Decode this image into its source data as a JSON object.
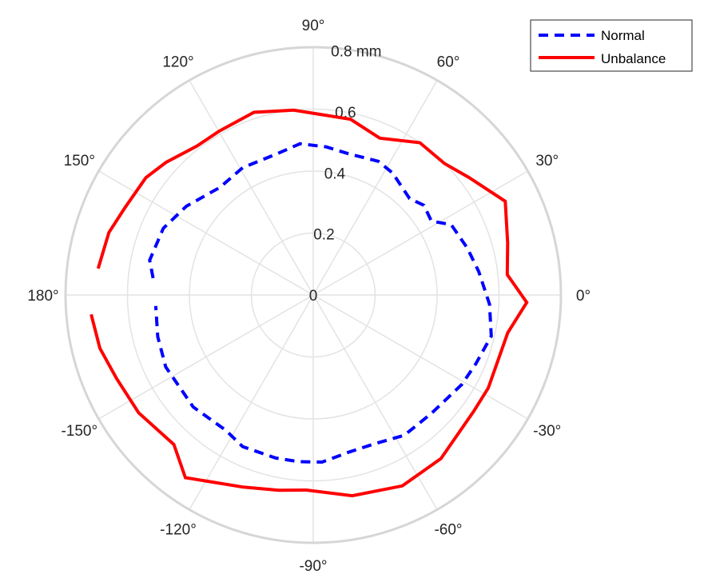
{
  "chart_data": {
    "type": "polar-line",
    "r_unit": "mm",
    "rlim": [
      0,
      0.8
    ],
    "r_ticks": [
      {
        "value": 0,
        "label": "0"
      },
      {
        "value": 0.2,
        "label": "0.2"
      },
      {
        "value": 0.4,
        "label": "0.4"
      },
      {
        "value": 0.6,
        "label": "0.6"
      },
      {
        "value": 0.8,
        "label": "0.8 mm"
      }
    ],
    "theta_ticks": [
      {
        "angle": 0,
        "label": "0°"
      },
      {
        "angle": 30,
        "label": "30°"
      },
      {
        "angle": 60,
        "label": "60°"
      },
      {
        "angle": 90,
        "label": "90°"
      },
      {
        "angle": 120,
        "label": "120°"
      },
      {
        "angle": 150,
        "label": "150°"
      },
      {
        "angle": 180,
        "label": "180°"
      },
      {
        "angle": -150,
        "label": "-150°"
      },
      {
        "angle": -120,
        "label": "-120°"
      },
      {
        "angle": -90,
        "label": "-90°"
      },
      {
        "angle": -60,
        "label": "-60°"
      },
      {
        "angle": -30,
        "label": "-30°"
      }
    ],
    "grid": true,
    "legend_position": "top-right",
    "series": [
      {
        "name": "Normal",
        "color": "#0000ff",
        "dash": "dashed",
        "theta": [
          174,
          168,
          156,
          145,
          131,
          119,
          105,
          95,
          85,
          76,
          64,
          57,
          45,
          39,
          32,
          27,
          17,
          8,
          -3,
          -13,
          -23,
          -31,
          -45,
          -57,
          -67,
          -77,
          -87,
          -95,
          -103,
          -115,
          -123,
          -137,
          -154,
          -165,
          -176
        ],
        "r": [
          0.52,
          0.54,
          0.53,
          0.5,
          0.46,
          0.47,
          0.47,
          0.49,
          0.48,
          0.47,
          0.48,
          0.47,
          0.44,
          0.46,
          0.45,
          0.5,
          0.52,
          0.54,
          0.57,
          0.59,
          0.57,
          0.56,
          0.54,
          0.54,
          0.52,
          0.52,
          0.54,
          0.54,
          0.54,
          0.54,
          0.52,
          0.53,
          0.53,
          0.52,
          0.51
        ]
      },
      {
        "name": "Unbalance",
        "color": "#ff0000",
        "dash": "solid",
        "theta": [
          173,
          163,
          155,
          145,
          138,
          128,
          120,
          108,
          96,
          78,
          67,
          55,
          45,
          37,
          26,
          15,
          6,
          -2,
          -11,
          -28,
          -36,
          -52,
          -65,
          -79,
          -92,
          -100,
          -110,
          -125,
          -133,
          -146,
          -157,
          -166,
          -175
        ],
        "r": [
          0.7,
          0.69,
          0.67,
          0.66,
          0.64,
          0.61,
          0.61,
          0.62,
          0.6,
          0.58,
          0.55,
          0.6,
          0.6,
          0.63,
          0.69,
          0.65,
          0.63,
          0.69,
          0.64,
          0.64,
          0.64,
          0.67,
          0.68,
          0.66,
          0.63,
          0.64,
          0.66,
          0.72,
          0.66,
          0.68,
          0.69,
          0.71,
          0.72
        ]
      }
    ]
  }
}
